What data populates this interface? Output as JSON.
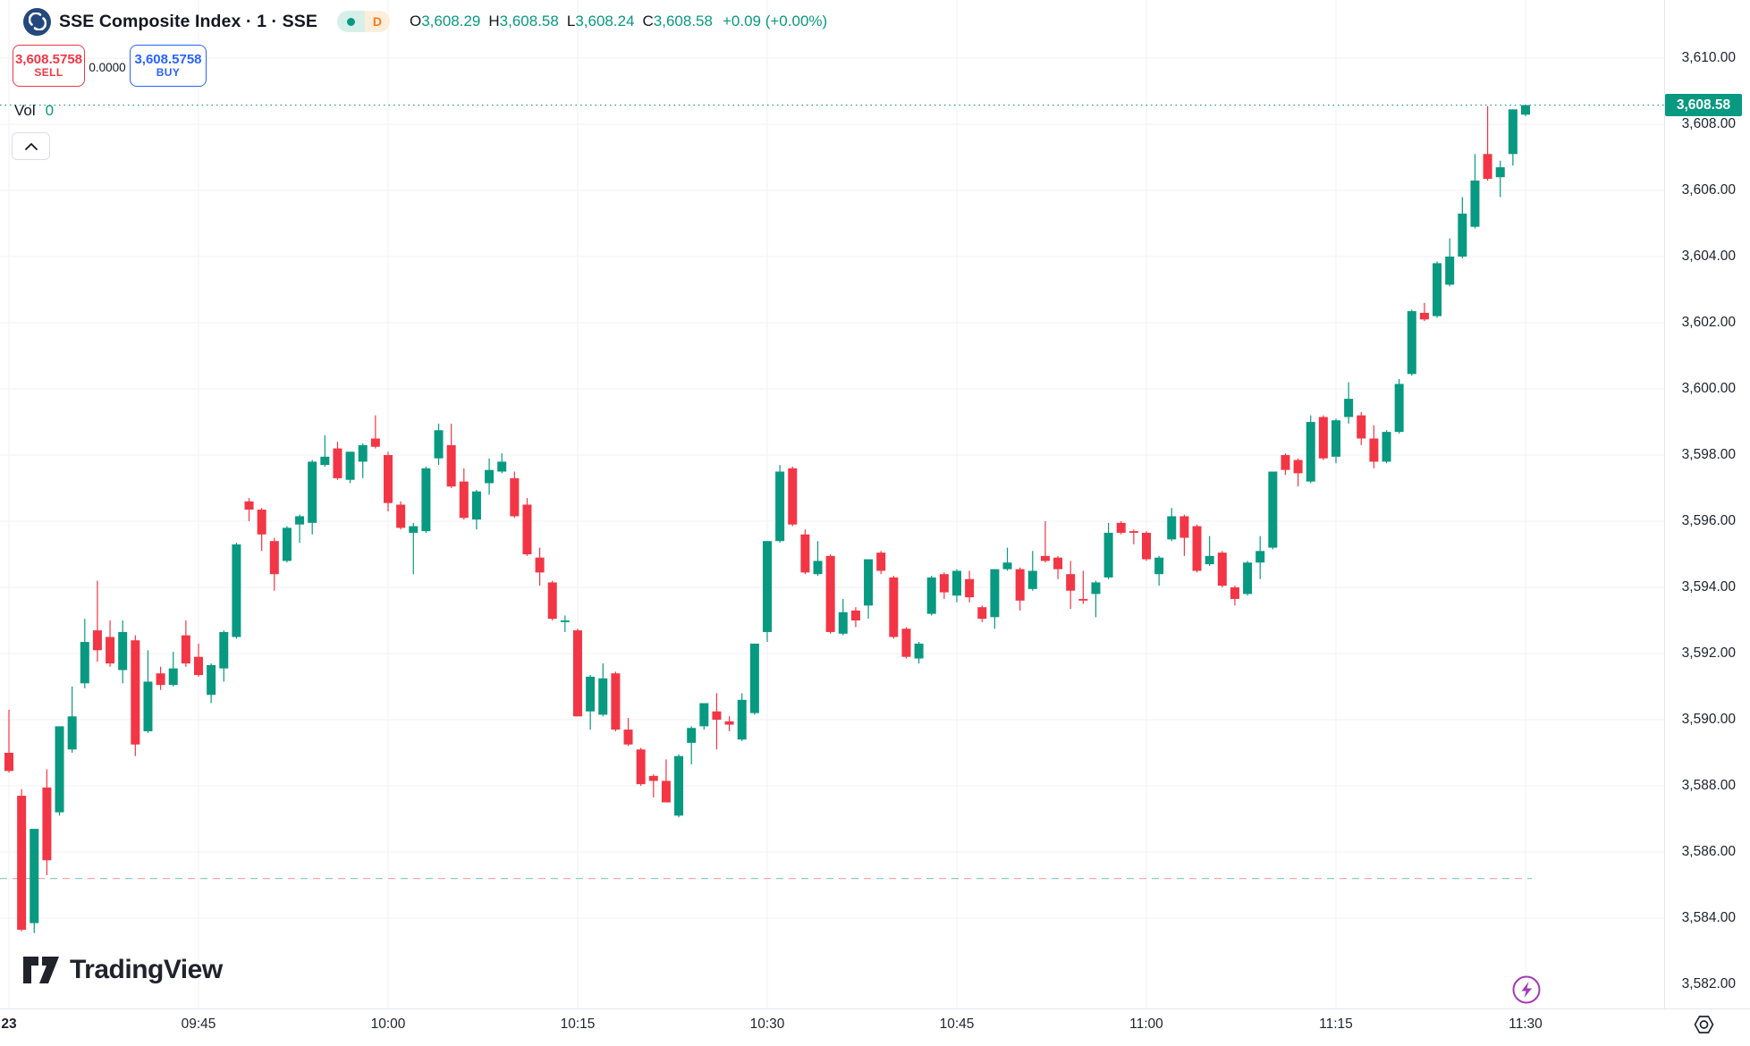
{
  "app": {
    "watermark": "TradingView"
  },
  "header": {
    "symbol_title": "SSE Composite Index · 1 · SSE",
    "interval_badge": "D",
    "ohlc": {
      "open_label": "O",
      "open": "3,608.29",
      "high_label": "H",
      "high": "3,608.58",
      "low_label": "L",
      "low": "3,608.24",
      "close_label": "C",
      "close": "3,608.58",
      "change": "+0.09 (+0.00%)"
    }
  },
  "trade_panel": {
    "sell_price": "3,608.5758",
    "sell_label": "SELL",
    "spread": "0.0000",
    "buy_price": "3,608.5758",
    "buy_label": "BUY"
  },
  "legend": {
    "vol_label": "Vol",
    "vol_value": "0"
  },
  "price_axis": {
    "last_price": "3,608.58",
    "labels": [
      [
        "3,610.00",
        3610
      ],
      [
        "3,608.00",
        3608
      ],
      [
        "3,606.00",
        3606
      ],
      [
        "3,604.00",
        3604
      ],
      [
        "3,602.00",
        3602
      ],
      [
        "3,600.00",
        3600
      ],
      [
        "3,598.00",
        3598
      ],
      [
        "3,596.00",
        3596
      ],
      [
        "3,594.00",
        3594
      ],
      [
        "3,592.00",
        3592
      ],
      [
        "3,590.00",
        3590
      ],
      [
        "3,588.00",
        3588
      ],
      [
        "3,586.00",
        3586
      ],
      [
        "3,584.00",
        3584
      ],
      [
        "3,582.00",
        3582
      ]
    ]
  },
  "time_axis": {
    "labels": [
      [
        "23",
        0,
        true
      ],
      [
        "09:45",
        15,
        false
      ],
      [
        "10:00",
        30,
        false
      ],
      [
        "10:15",
        45,
        false
      ],
      [
        "10:30",
        60,
        false
      ],
      [
        "10:45",
        75,
        false
      ],
      [
        "11:00",
        90,
        false
      ],
      [
        "11:15",
        105,
        false
      ],
      [
        "11:30",
        120,
        false
      ]
    ]
  },
  "colors": {
    "up": "#089981",
    "down": "#f23645",
    "buy_blue": "#2962ff",
    "sell_red": "#f23645",
    "badge_bg": "#089981",
    "last_price_line": "#089981",
    "bidask_dash_teal": "#8ecac1",
    "bidask_dash_red": "#f3a8ab",
    "grid": "#f0f2f6",
    "purple": "#a23ab5"
  },
  "chart_data": {
    "type": "candlestick",
    "symbol": "SSE Composite Index",
    "interval": "1 minute",
    "session_start": "09:30",
    "minutes_per_candle": 1,
    "last_price": 3608.58,
    "bid_ask_line_price": 3585.2,
    "ylim": [
      3581.5,
      3610.5
    ],
    "y_gridlines": [
      3584,
      3586,
      3588,
      3590,
      3592,
      3594,
      3596,
      3598,
      3600,
      3602,
      3604,
      3606,
      3608,
      3610
    ],
    "candles": [
      [
        3589.0,
        3590.3,
        3588.4,
        3588.45
      ],
      [
        3587.7,
        3587.9,
        3583.6,
        3583.65
      ],
      [
        3583.85,
        3586.7,
        3583.55,
        3586.7
      ],
      [
        3587.95,
        3588.5,
        3585.3,
        3585.75
      ],
      [
        3587.2,
        3589.8,
        3587.1,
        3589.8
      ],
      [
        3589.1,
        3591.0,
        3589.0,
        3590.1
      ],
      [
        3591.1,
        3593.05,
        3590.95,
        3592.35
      ],
      [
        3592.7,
        3594.2,
        3591.75,
        3592.1
      ],
      [
        3592.5,
        3593.0,
        3591.6,
        3591.7
      ],
      [
        3591.5,
        3593.0,
        3591.1,
        3592.65
      ],
      [
        3592.4,
        3592.55,
        3588.9,
        3589.25
      ],
      [
        3589.65,
        3592.1,
        3589.6,
        3591.15
      ],
      [
        3591.4,
        3591.6,
        3590.9,
        3591.05
      ],
      [
        3591.05,
        3592.05,
        3591.0,
        3591.55
      ],
      [
        3592.55,
        3593.0,
        3591.6,
        3591.7
      ],
      [
        3591.9,
        3592.3,
        3591.3,
        3591.35
      ],
      [
        3590.75,
        3591.7,
        3590.5,
        3591.65
      ],
      [
        3591.55,
        3592.7,
        3591.15,
        3592.65
      ],
      [
        3592.5,
        3595.35,
        3592.45,
        3595.3
      ],
      [
        3596.6,
        3596.7,
        3596.0,
        3596.35
      ],
      [
        3596.35,
        3596.4,
        3595.1,
        3595.6
      ],
      [
        3595.4,
        3595.5,
        3593.9,
        3594.4
      ],
      [
        3594.8,
        3595.85,
        3594.75,
        3595.8
      ],
      [
        3595.9,
        3596.2,
        3595.35,
        3596.15
      ],
      [
        3595.95,
        3597.85,
        3595.6,
        3597.8
      ],
      [
        3597.7,
        3598.6,
        3597.65,
        3597.95
      ],
      [
        3598.2,
        3598.4,
        3597.25,
        3597.3
      ],
      [
        3597.25,
        3598.1,
        3597.15,
        3598.1
      ],
      [
        3597.8,
        3598.35,
        3597.3,
        3598.3
      ],
      [
        3598.5,
        3599.2,
        3598.2,
        3598.25
      ],
      [
        3598.0,
        3598.1,
        3596.3,
        3596.55
      ],
      [
        3596.5,
        3596.6,
        3595.75,
        3595.8
      ],
      [
        3595.65,
        3595.95,
        3594.4,
        3595.85
      ],
      [
        3595.7,
        3597.65,
        3595.65,
        3597.6
      ],
      [
        3597.9,
        3598.95,
        3597.7,
        3598.75
      ],
      [
        3598.3,
        3598.95,
        3597.0,
        3597.05
      ],
      [
        3597.2,
        3597.6,
        3596.05,
        3596.1
      ],
      [
        3596.05,
        3596.95,
        3595.75,
        3596.9
      ],
      [
        3597.15,
        3597.9,
        3596.8,
        3597.55
      ],
      [
        3597.5,
        3598.05,
        3597.45,
        3597.8
      ],
      [
        3597.3,
        3597.5,
        3596.1,
        3596.15
      ],
      [
        3596.5,
        3596.7,
        3594.95,
        3595.0
      ],
      [
        3594.9,
        3595.2,
        3594.05,
        3594.45
      ],
      [
        3594.15,
        3594.2,
        3593.0,
        3593.05
      ],
      [
        3592.95,
        3593.15,
        3592.65,
        3593.0
      ],
      [
        3592.7,
        3592.75,
        3590.1,
        3590.1
      ],
      [
        3590.25,
        3591.35,
        3589.7,
        3591.3
      ],
      [
        3590.15,
        3591.7,
        3590.1,
        3591.25
      ],
      [
        3591.4,
        3591.45,
        3589.65,
        3589.7
      ],
      [
        3589.7,
        3590.05,
        3589.2,
        3589.25
      ],
      [
        3589.1,
        3589.15,
        3588.0,
        3588.05
      ],
      [
        3588.3,
        3588.35,
        3587.65,
        3588.15
      ],
      [
        3588.15,
        3588.8,
        3587.5,
        3587.5
      ],
      [
        3587.1,
        3588.95,
        3587.05,
        3588.9
      ],
      [
        3589.3,
        3589.8,
        3588.65,
        3589.75
      ],
      [
        3589.8,
        3590.5,
        3589.7,
        3590.5
      ],
      [
        3590.25,
        3590.8,
        3589.1,
        3590.0
      ],
      [
        3589.95,
        3590.1,
        3589.65,
        3589.85
      ],
      [
        3589.4,
        3590.8,
        3589.35,
        3590.6
      ],
      [
        3590.2,
        3592.3,
        3590.15,
        3592.3
      ],
      [
        3592.65,
        3595.4,
        3592.35,
        3595.4
      ],
      [
        3595.4,
        3597.7,
        3595.35,
        3597.5
      ],
      [
        3597.6,
        3597.65,
        3595.85,
        3595.9
      ],
      [
        3595.6,
        3595.75,
        3594.4,
        3594.45
      ],
      [
        3594.4,
        3595.4,
        3594.35,
        3594.8
      ],
      [
        3594.95,
        3595.0,
        3592.6,
        3592.65
      ],
      [
        3592.6,
        3593.65,
        3592.55,
        3593.25
      ],
      [
        3593.3,
        3593.4,
        3592.8,
        3593.0
      ],
      [
        3593.45,
        3594.85,
        3593.05,
        3594.85
      ],
      [
        3595.05,
        3595.1,
        3594.4,
        3594.5
      ],
      [
        3594.3,
        3594.35,
        3592.45,
        3592.5
      ],
      [
        3592.75,
        3592.8,
        3591.85,
        3591.9
      ],
      [
        3591.85,
        3592.35,
        3591.7,
        3592.3
      ],
      [
        3593.2,
        3594.35,
        3593.15,
        3594.3
      ],
      [
        3594.4,
        3594.45,
        3593.65,
        3593.85
      ],
      [
        3593.75,
        3594.55,
        3593.55,
        3594.5
      ],
      [
        3594.25,
        3594.5,
        3593.55,
        3593.7
      ],
      [
        3593.4,
        3593.45,
        3592.95,
        3593.05
      ],
      [
        3593.1,
        3594.55,
        3592.75,
        3594.55
      ],
      [
        3594.55,
        3595.2,
        3594.5,
        3594.75
      ],
      [
        3594.55,
        3594.6,
        3593.3,
        3593.6
      ],
      [
        3593.95,
        3595.1,
        3593.9,
        3594.5
      ],
      [
        3594.95,
        3596.0,
        3594.75,
        3594.8
      ],
      [
        3594.9,
        3594.95,
        3594.25,
        3594.55
      ],
      [
        3594.4,
        3594.8,
        3593.35,
        3593.9
      ],
      [
        3593.65,
        3594.5,
        3593.5,
        3593.6
      ],
      [
        3593.8,
        3594.2,
        3593.1,
        3594.15
      ],
      [
        3594.3,
        3595.95,
        3594.25,
        3595.65
      ],
      [
        3595.95,
        3596.0,
        3595.6,
        3595.65
      ],
      [
        3595.7,
        3595.75,
        3595.3,
        3595.65
      ],
      [
        3595.65,
        3595.7,
        3594.8,
        3594.85
      ],
      [
        3594.4,
        3594.95,
        3594.05,
        3594.9
      ],
      [
        3595.45,
        3596.4,
        3595.4,
        3596.15
      ],
      [
        3596.15,
        3596.2,
        3594.95,
        3595.5
      ],
      [
        3595.85,
        3595.9,
        3594.45,
        3594.5
      ],
      [
        3594.7,
        3595.55,
        3594.65,
        3594.95
      ],
      [
        3595.05,
        3595.1,
        3594.0,
        3594.05
      ],
      [
        3594.0,
        3594.05,
        3593.45,
        3593.65
      ],
      [
        3593.8,
        3594.8,
        3593.75,
        3594.75
      ],
      [
        3594.75,
        3595.55,
        3594.25,
        3595.1
      ],
      [
        3595.2,
        3597.5,
        3595.15,
        3597.5
      ],
      [
        3598.0,
        3598.05,
        3597.4,
        3597.55
      ],
      [
        3597.85,
        3597.9,
        3597.05,
        3597.45
      ],
      [
        3597.2,
        3599.2,
        3597.15,
        3599.0
      ],
      [
        3599.15,
        3599.2,
        3597.85,
        3597.9
      ],
      [
        3597.95,
        3599.1,
        3597.75,
        3599.05
      ],
      [
        3599.15,
        3600.2,
        3598.95,
        3599.7
      ],
      [
        3599.2,
        3599.3,
        3598.3,
        3598.5
      ],
      [
        3598.5,
        3598.9,
        3597.6,
        3597.8
      ],
      [
        3597.8,
        3598.75,
        3597.75,
        3598.7
      ],
      [
        3598.7,
        3600.3,
        3598.65,
        3600.15
      ],
      [
        3600.45,
        3602.4,
        3600.4,
        3602.35
      ],
      [
        3602.3,
        3602.6,
        3602.05,
        3602.1
      ],
      [
        3602.2,
        3603.85,
        3602.15,
        3603.8
      ],
      [
        3603.15,
        3604.55,
        3603.1,
        3604.0
      ],
      [
        3604.0,
        3605.8,
        3603.95,
        3605.3
      ],
      [
        3604.9,
        3607.1,
        3604.85,
        3606.3
      ],
      [
        3607.1,
        3608.55,
        3606.3,
        3606.35
      ],
      [
        3606.4,
        3606.9,
        3605.8,
        3606.7
      ],
      [
        3607.1,
        3608.45,
        3606.75,
        3608.45
      ],
      [
        3608.29,
        3608.58,
        3608.24,
        3608.58
      ]
    ]
  }
}
